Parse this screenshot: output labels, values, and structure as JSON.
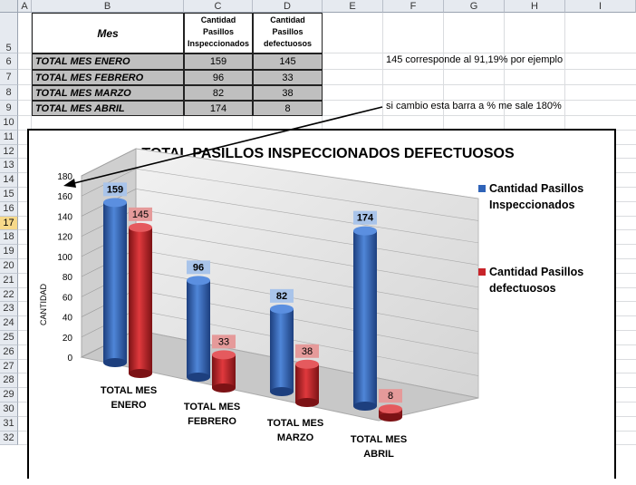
{
  "columns": [
    "A",
    "B",
    "C",
    "D",
    "E",
    "F",
    "G",
    "H",
    "I"
  ],
  "rows": [
    "5",
    "6",
    "7",
    "8",
    "9",
    "10",
    "11",
    "12",
    "13",
    "14",
    "15",
    "16",
    "17",
    "18",
    "19",
    "20",
    "21",
    "22",
    "23",
    "24",
    "25",
    "26",
    "27",
    "28",
    "29",
    "30",
    "31",
    "32"
  ],
  "selected_row": "17",
  "table": {
    "header_mes": "Mes",
    "header_c": [
      "Cantidad",
      "Pasillos",
      "Inspeccionados"
    ],
    "header_d": [
      "Cantidad",
      "Pasillos",
      "defectuosos"
    ],
    "rows": [
      {
        "label": "TOTAL MES ENERO",
        "c": "159",
        "d": "145"
      },
      {
        "label": "TOTAL MES FEBRERO",
        "c": "96",
        "d": "33"
      },
      {
        "label": "TOTAL MES MARZO",
        "c": "82",
        "d": "38"
      },
      {
        "label": "TOTAL MES ABRIL",
        "c": "174",
        "d": "8"
      }
    ]
  },
  "notes": {
    "note1": "145 corresponde al 91,19% por ejemplo",
    "note2": "si cambio esta barra a % me sale 180%"
  },
  "colors": {
    "blue": "#2f63b8",
    "red": "#c8242a",
    "blue_label_bg": "#a9c4ea",
    "red_label_bg": "#e59a9a"
  },
  "chart_data": {
    "type": "bar",
    "title": "TOTAL PASILLOS  INSPECCIONADOS  DEFECTUOSOS",
    "ylabel": "CANTIDAD",
    "xlabel": "",
    "ylim": [
      0,
      180
    ],
    "yticks": [
      "0",
      "20",
      "40",
      "60",
      "80",
      "100",
      "120",
      "140",
      "160",
      "180"
    ],
    "categories": [
      [
        "TOTAL MES",
        "ENERO"
      ],
      [
        "TOTAL MES",
        "FEBRERO"
      ],
      [
        "TOTAL MES",
        "MARZO"
      ],
      [
        "TOTAL MES",
        "ABRIL"
      ]
    ],
    "series": [
      {
        "name_lines": [
          "Cantidad Pasillos",
          "Inspeccionados"
        ],
        "values": [
          159,
          96,
          82,
          174
        ]
      },
      {
        "name_lines": [
          "Cantidad Pasillos",
          "defectuosos"
        ],
        "values": [
          145,
          33,
          38,
          8
        ]
      }
    ],
    "legend": "right",
    "grid": true
  }
}
